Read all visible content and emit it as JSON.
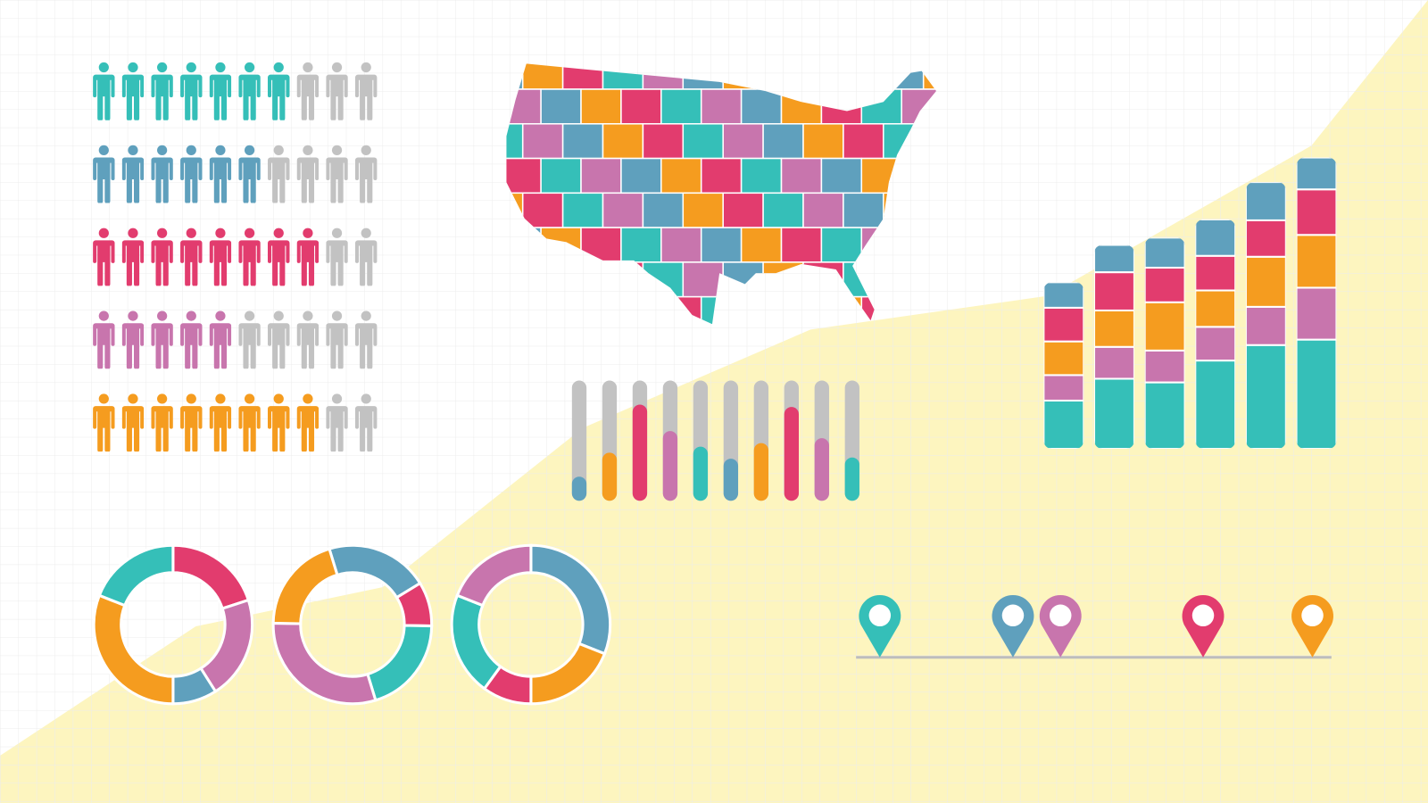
{
  "palette": {
    "teal": "#35bfb8",
    "blue": "#5fa0bd",
    "pink": "#e23c6e",
    "mauve": "#c875ad",
    "orange": "#f59c1f",
    "gray": "#c2c2c2",
    "background": "#ffffff",
    "grid": "#ececec",
    "highlight": "#fdf5bf"
  },
  "chart_data": [
    {
      "type": "pictogram",
      "icon": "person-icon",
      "total_per_row": 10,
      "rows": [
        {
          "color": "teal",
          "filled": 7
        },
        {
          "color": "blue",
          "filled": 6
        },
        {
          "color": "pink",
          "filled": 8
        },
        {
          "color": "mauve",
          "filled": 5
        },
        {
          "color": "orange",
          "filled": 8
        }
      ]
    },
    {
      "type": "choropleth-map",
      "region": "United States",
      "colors": [
        "teal",
        "blue",
        "pink",
        "mauve",
        "orange"
      ]
    },
    {
      "type": "bar",
      "subtype": "progress-columns",
      "ylim": [
        0,
        1
      ],
      "bars": [
        {
          "color": "blue",
          "value": 0.2
        },
        {
          "color": "orange",
          "value": 0.4
        },
        {
          "color": "pink",
          "value": 0.8
        },
        {
          "color": "mauve",
          "value": 0.58
        },
        {
          "color": "teal",
          "value": 0.45
        },
        {
          "color": "blue",
          "value": 0.35
        },
        {
          "color": "orange",
          "value": 0.48
        },
        {
          "color": "pink",
          "value": 0.78
        },
        {
          "color": "mauve",
          "value": 0.52
        },
        {
          "color": "teal",
          "value": 0.36
        }
      ]
    },
    {
      "type": "bar",
      "subtype": "stacked",
      "stack_order": [
        "teal",
        "mauve",
        "orange",
        "pink",
        "blue"
      ],
      "series": [
        {
          "color": "teal",
          "values": [
            53,
            77,
            73,
            97,
            114,
            120
          ]
        },
        {
          "color": "mauve",
          "values": [
            28,
            35,
            35,
            37,
            42,
            57
          ]
        },
        {
          "color": "orange",
          "values": [
            37,
            40,
            53,
            40,
            55,
            58
          ]
        },
        {
          "color": "pink",
          "values": [
            37,
            42,
            38,
            38,
            40,
            50
          ]
        },
        {
          "color": "blue",
          "values": [
            28,
            30,
            33,
            40,
            42,
            35
          ]
        }
      ]
    },
    {
      "type": "pie",
      "subtype": "donut",
      "donuts": [
        {
          "start_deg": 0,
          "slices": [
            {
              "color": "pink",
              "value": 20
            },
            {
              "color": "mauve",
              "value": 21
            },
            {
              "color": "blue",
              "value": 9
            },
            {
              "color": "orange",
              "value": 31
            },
            {
              "color": "teal",
              "value": 19
            }
          ]
        },
        {
          "start_deg": -17,
          "slices": [
            {
              "color": "blue",
              "value": 21
            },
            {
              "color": "pink",
              "value": 9
            },
            {
              "color": "teal",
              "value": 20
            },
            {
              "color": "mauve",
              "value": 30
            },
            {
              "color": "orange",
              "value": 20
            }
          ]
        },
        {
          "start_deg": 0,
          "slices": [
            {
              "color": "blue",
              "value": 31
            },
            {
              "color": "orange",
              "value": 19
            },
            {
              "color": "pink",
              "value": 10
            },
            {
              "color": "teal",
              "value": 21
            },
            {
              "color": "mauve",
              "value": 19
            }
          ]
        }
      ]
    },
    {
      "type": "timeline",
      "icon": "map-pin-icon",
      "xlim": [
        0,
        100
      ],
      "pins": [
        {
          "color": "teal",
          "x": 5
        },
        {
          "color": "blue",
          "x": 33
        },
        {
          "color": "mauve",
          "x": 43
        },
        {
          "color": "pink",
          "x": 73
        },
        {
          "color": "orange",
          "x": 96
        }
      ]
    }
  ]
}
